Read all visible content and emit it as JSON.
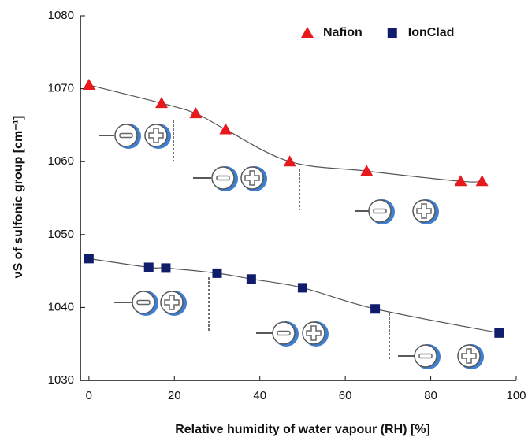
{
  "chart_data": {
    "type": "scatter",
    "xlabel": "Relative humidity of water vapour (RH) [%]",
    "ylabel": "νS of sulfonic group [cm⁻¹]",
    "xlim": [
      -2,
      100
    ],
    "ylim": [
      1030,
      1080
    ],
    "xticks": [
      0,
      20,
      40,
      60,
      80,
      100
    ],
    "yticks": [
      1030,
      1040,
      1050,
      1060,
      1070,
      1080
    ],
    "legend": "upper right",
    "series": [
      {
        "name": "Nafion",
        "color": "#e8191d",
        "marker": "triangle",
        "x": [
          0,
          17,
          25,
          32,
          47,
          65,
          87,
          92
        ],
        "values": [
          1070.5,
          1068,
          1066.6,
          1064.4,
          1060,
          1058.7,
          1057.3,
          1057.3
        ]
      },
      {
        "name": "IonClad",
        "color": "#0f1d6b",
        "marker": "square",
        "x": [
          0,
          14,
          18,
          30,
          38,
          50,
          67,
          96
        ],
        "values": [
          1046.7,
          1045.5,
          1045.4,
          1044.7,
          1043.9,
          1042.7,
          1039.8,
          1036.5
        ]
      }
    ]
  }
}
